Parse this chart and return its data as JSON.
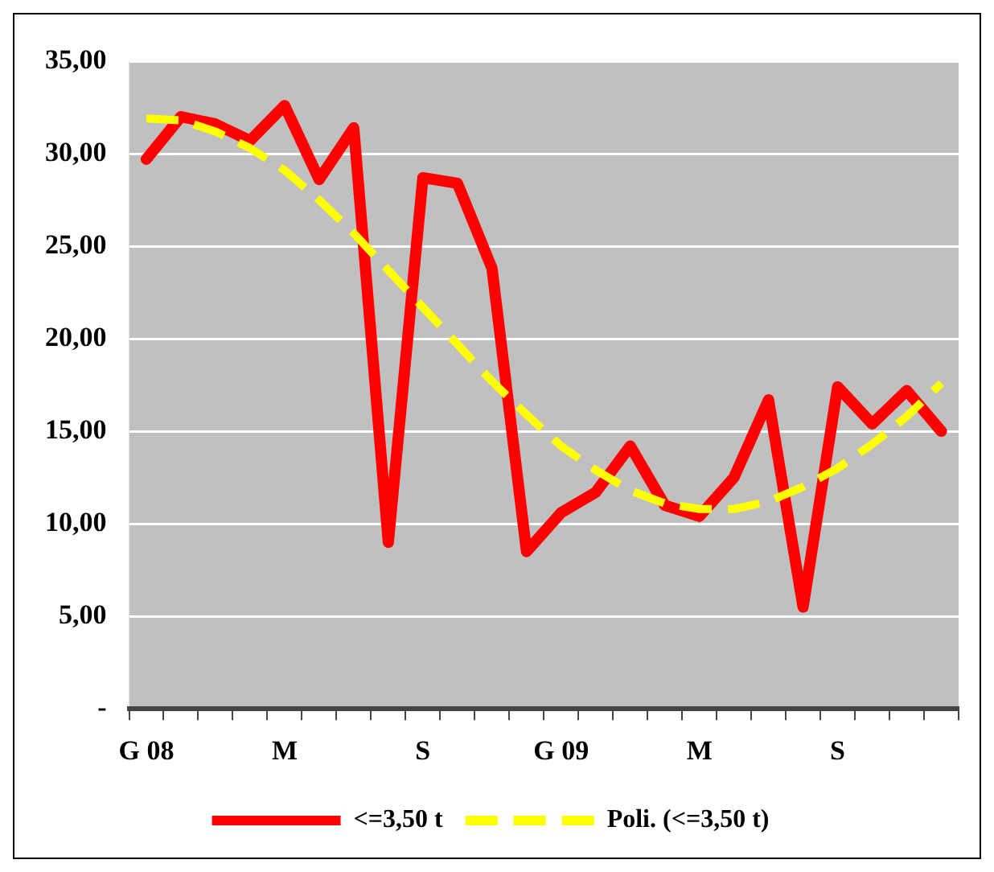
{
  "chart_data": {
    "type": "line",
    "categories": [
      "G 08",
      null,
      null,
      null,
      "M",
      null,
      null,
      null,
      "S",
      null,
      null,
      null,
      "G 09",
      null,
      null,
      null,
      "M",
      null,
      null,
      null,
      "S",
      null,
      null,
      null
    ],
    "series": [
      {
        "name": "<=3,50 t",
        "color": "#ff0000",
        "values": [
          29.7,
          32.0,
          31.6,
          30.7,
          32.6,
          28.6,
          31.4,
          9.0,
          28.7,
          28.4,
          23.8,
          8.5,
          10.6,
          11.7,
          14.2,
          11.0,
          10.4,
          12.5,
          16.7,
          5.5,
          17.4,
          15.4,
          17.2,
          15.0
        ]
      },
      {
        "name": "Poli. (<=3,50 t)",
        "color": "#ffff00",
        "line_style": "dashed",
        "values": [
          31.9,
          31.8,
          31.2,
          30.3,
          29.1,
          27.5,
          25.7,
          23.7,
          21.7,
          19.7,
          17.7,
          15.9,
          14.2,
          12.9,
          11.8,
          11.1,
          10.8,
          10.8,
          11.2,
          12.0,
          13.0,
          14.3,
          15.8,
          17.6
        ]
      }
    ],
    "ylim": [
      0,
      35
    ],
    "yticks": [
      {
        "value": 0,
        "label": "-"
      },
      {
        "value": 5,
        "label": "5,00"
      },
      {
        "value": 10,
        "label": "10,00"
      },
      {
        "value": 15,
        "label": "15,00"
      },
      {
        "value": 20,
        "label": "20,00"
      },
      {
        "value": 25,
        "label": "25,00"
      },
      {
        "value": 30,
        "label": "30,00"
      },
      {
        "value": 35,
        "label": "35,00"
      }
    ],
    "grid": "y",
    "legend": "bottom",
    "marker": "none"
  }
}
